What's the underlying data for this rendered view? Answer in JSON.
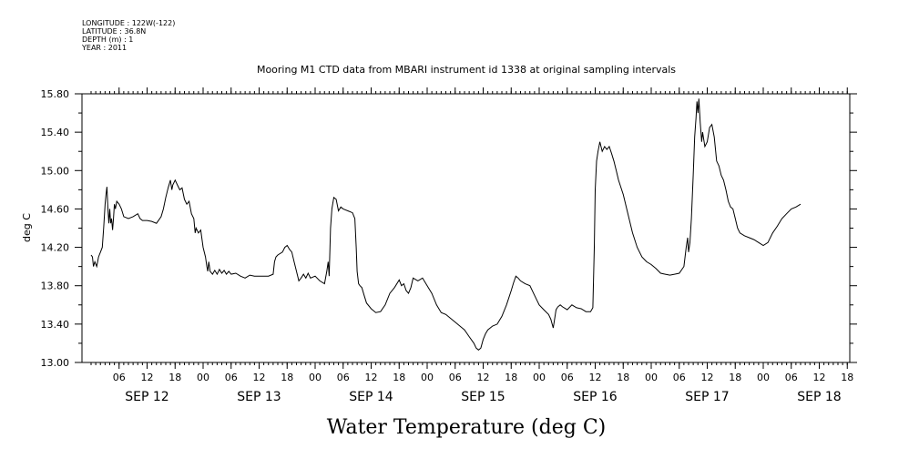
{
  "meta": {
    "longitude": "LONGITUDE : 122W(-122)",
    "latitude": "LATITUDE : 36.8N",
    "depth": "DEPTH (m) : 1",
    "year": "YEAR : 2011"
  },
  "chart_data": {
    "type": "line",
    "title": "Mooring M1 CTD data from MBARI instrument id 1338 at original sampling intervals",
    "xlabel": "Water Temperature (deg C)",
    "ylabel": "deg C",
    "ylim": [
      13.0,
      15.8
    ],
    "yticks": [
      "13.00",
      "13.40",
      "13.80",
      "14.20",
      "14.60",
      "15.00",
      "15.40",
      "15.80"
    ],
    "ytick_values": [
      13.0,
      13.4,
      13.8,
      14.2,
      14.6,
      15.0,
      15.4,
      15.8
    ],
    "xlim": [
      0,
      168
    ],
    "x_unit": "hours from 2011-09-12 00:00",
    "hour_ticks": [
      {
        "x": 6,
        "label": "06"
      },
      {
        "x": 12,
        "label": "12"
      },
      {
        "x": 18,
        "label": "18"
      },
      {
        "x": 24,
        "label": "00"
      },
      {
        "x": 30,
        "label": "06"
      },
      {
        "x": 36,
        "label": "12"
      },
      {
        "x": 42,
        "label": "18"
      },
      {
        "x": 48,
        "label": "00"
      },
      {
        "x": 54,
        "label": "06"
      },
      {
        "x": 60,
        "label": "12"
      },
      {
        "x": 66,
        "label": "18"
      },
      {
        "x": 72,
        "label": "00"
      },
      {
        "x": 78,
        "label": "06"
      },
      {
        "x": 84,
        "label": "12"
      },
      {
        "x": 90,
        "label": "18"
      },
      {
        "x": 96,
        "label": "00"
      },
      {
        "x": 102,
        "label": "06"
      },
      {
        "x": 108,
        "label": "12"
      },
      {
        "x": 114,
        "label": "18"
      },
      {
        "x": 120,
        "label": "00"
      },
      {
        "x": 126,
        "label": "06"
      },
      {
        "x": 132,
        "label": "12"
      },
      {
        "x": 138,
        "label": "18"
      },
      {
        "x": 144,
        "label": "00"
      },
      {
        "x": 150,
        "label": "06"
      },
      {
        "x": 156,
        "label": "12"
      },
      {
        "x": 162,
        "label": "18"
      }
    ],
    "day_labels": [
      {
        "x": 12,
        "label": "SEP 12"
      },
      {
        "x": 36,
        "label": "SEP 13"
      },
      {
        "x": 60,
        "label": "SEP 14"
      },
      {
        "x": 84,
        "label": "SEP 15"
      },
      {
        "x": 108,
        "label": "SEP 16"
      },
      {
        "x": 132,
        "label": "SEP 17"
      },
      {
        "x": 156,
        "label": "SEP 18"
      }
    ],
    "grid": false,
    "series": [
      {
        "points": [
          [
            0.0,
            14.12
          ],
          [
            0.3,
            14.1
          ],
          [
            0.5,
            14.0
          ],
          [
            0.8,
            14.05
          ],
          [
            1.2,
            14.0
          ],
          [
            1.6,
            14.1
          ],
          [
            2.0,
            14.15
          ],
          [
            2.4,
            14.2
          ],
          [
            2.7,
            14.4
          ],
          [
            3.0,
            14.65
          ],
          [
            3.2,
            14.75
          ],
          [
            3.4,
            14.83
          ],
          [
            3.6,
            14.6
          ],
          [
            3.8,
            14.45
          ],
          [
            4.0,
            14.6
          ],
          [
            4.2,
            14.45
          ],
          [
            4.4,
            14.5
          ],
          [
            4.6,
            14.38
          ],
          [
            4.8,
            14.5
          ],
          [
            5.0,
            14.65
          ],
          [
            5.2,
            14.6
          ],
          [
            5.5,
            14.68
          ],
          [
            6.0,
            14.65
          ],
          [
            6.5,
            14.6
          ],
          [
            7.0,
            14.52
          ],
          [
            8.0,
            14.5
          ],
          [
            9.0,
            14.52
          ],
          [
            10.0,
            14.55
          ],
          [
            10.5,
            14.5
          ],
          [
            11.0,
            14.48
          ],
          [
            12.0,
            14.48
          ],
          [
            13.0,
            14.47
          ],
          [
            14.0,
            14.45
          ],
          [
            15.0,
            14.52
          ],
          [
            15.5,
            14.6
          ],
          [
            16.0,
            14.72
          ],
          [
            16.5,
            14.82
          ],
          [
            17.0,
            14.9
          ],
          [
            17.3,
            14.8
          ],
          [
            17.5,
            14.85
          ],
          [
            18.0,
            14.9
          ],
          [
            18.5,
            14.85
          ],
          [
            19.0,
            14.8
          ],
          [
            19.5,
            14.82
          ],
          [
            20.0,
            14.7
          ],
          [
            20.5,
            14.65
          ],
          [
            21.0,
            14.68
          ],
          [
            21.5,
            14.55
          ],
          [
            22.0,
            14.5
          ],
          [
            22.3,
            14.35
          ],
          [
            22.5,
            14.4
          ],
          [
            23.0,
            14.35
          ],
          [
            23.5,
            14.38
          ],
          [
            24.0,
            14.2
          ],
          [
            24.5,
            14.1
          ],
          [
            24.8,
            14.0
          ],
          [
            25.0,
            13.95
          ],
          [
            25.2,
            14.05
          ],
          [
            25.5,
            13.95
          ],
          [
            26.0,
            13.92
          ],
          [
            26.5,
            13.96
          ],
          [
            27.0,
            13.92
          ],
          [
            27.5,
            13.97
          ],
          [
            28.0,
            13.93
          ],
          [
            28.5,
            13.96
          ],
          [
            29.0,
            13.92
          ],
          [
            29.5,
            13.95
          ],
          [
            30.0,
            13.92
          ],
          [
            31.0,
            13.93
          ],
          [
            32.0,
            13.9
          ],
          [
            33.0,
            13.88
          ],
          [
            34.0,
            13.91
          ],
          [
            35.0,
            13.9
          ],
          [
            36.0,
            13.9
          ],
          [
            37.0,
            13.9
          ],
          [
            38.0,
            13.9
          ],
          [
            39.0,
            13.92
          ],
          [
            39.3,
            14.05
          ],
          [
            39.6,
            14.1
          ],
          [
            40.0,
            14.12
          ],
          [
            41.0,
            14.15
          ],
          [
            41.5,
            14.2
          ],
          [
            42.0,
            14.22
          ],
          [
            42.5,
            14.18
          ],
          [
            43.0,
            14.15
          ],
          [
            43.5,
            14.05
          ],
          [
            44.0,
            13.95
          ],
          [
            44.5,
            13.85
          ],
          [
            45.0,
            13.88
          ],
          [
            45.5,
            13.92
          ],
          [
            46.0,
            13.88
          ],
          [
            46.5,
            13.93
          ],
          [
            47.0,
            13.88
          ],
          [
            48.0,
            13.9
          ],
          [
            49.0,
            13.85
          ],
          [
            50.0,
            13.82
          ],
          [
            50.5,
            13.95
          ],
          [
            50.8,
            14.05
          ],
          [
            51.0,
            13.9
          ],
          [
            51.3,
            14.4
          ],
          [
            51.6,
            14.6
          ],
          [
            52.0,
            14.72
          ],
          [
            52.5,
            14.7
          ],
          [
            53.0,
            14.58
          ],
          [
            53.5,
            14.62
          ],
          [
            54.0,
            14.6
          ],
          [
            55.0,
            14.58
          ],
          [
            56.0,
            14.56
          ],
          [
            56.5,
            14.5
          ],
          [
            56.8,
            14.2
          ],
          [
            57.0,
            13.95
          ],
          [
            57.3,
            13.82
          ],
          [
            57.6,
            13.8
          ],
          [
            58.0,
            13.78
          ],
          [
            58.5,
            13.7
          ],
          [
            59.0,
            13.62
          ],
          [
            60.0,
            13.56
          ],
          [
            61.0,
            13.52
          ],
          [
            62.0,
            13.53
          ],
          [
            63.0,
            13.6
          ],
          [
            64.0,
            13.72
          ],
          [
            65.0,
            13.78
          ],
          [
            66.0,
            13.86
          ],
          [
            66.5,
            13.8
          ],
          [
            67.0,
            13.82
          ],
          [
            67.5,
            13.75
          ],
          [
            68.0,
            13.72
          ],
          [
            68.5,
            13.78
          ],
          [
            69.0,
            13.88
          ],
          [
            70.0,
            13.85
          ],
          [
            71.0,
            13.88
          ],
          [
            72.0,
            13.8
          ],
          [
            73.0,
            13.72
          ],
          [
            74.0,
            13.6
          ],
          [
            75.0,
            13.52
          ],
          [
            76.0,
            13.5
          ],
          [
            77.0,
            13.46
          ],
          [
            78.0,
            13.42
          ],
          [
            79.0,
            13.38
          ],
          [
            80.0,
            13.34
          ],
          [
            81.0,
            13.27
          ],
          [
            82.0,
            13.2
          ],
          [
            82.5,
            13.15
          ],
          [
            83.0,
            13.13
          ],
          [
            83.5,
            13.15
          ],
          [
            84.0,
            13.24
          ],
          [
            84.5,
            13.3
          ],
          [
            85.0,
            13.34
          ],
          [
            86.0,
            13.38
          ],
          [
            87.0,
            13.4
          ],
          [
            88.0,
            13.48
          ],
          [
            89.0,
            13.6
          ],
          [
            90.0,
            13.75
          ],
          [
            90.5,
            13.83
          ],
          [
            91.0,
            13.9
          ],
          [
            91.5,
            13.88
          ],
          [
            92.0,
            13.85
          ],
          [
            93.0,
            13.82
          ],
          [
            94.0,
            13.8
          ],
          [
            95.0,
            13.7
          ],
          [
            96.0,
            13.6
          ],
          [
            97.0,
            13.55
          ],
          [
            98.0,
            13.5
          ],
          [
            98.5,
            13.45
          ],
          [
            99.0,
            13.36
          ],
          [
            99.3,
            13.45
          ],
          [
            99.6,
            13.55
          ],
          [
            100.0,
            13.58
          ],
          [
            100.5,
            13.6
          ],
          [
            101.0,
            13.58
          ],
          [
            102.0,
            13.55
          ],
          [
            103.0,
            13.6
          ],
          [
            104.0,
            13.57
          ],
          [
            105.0,
            13.56
          ],
          [
            106.0,
            13.53
          ],
          [
            107.0,
            13.53
          ],
          [
            107.5,
            13.57
          ],
          [
            107.8,
            14.2
          ],
          [
            108.0,
            14.8
          ],
          [
            108.3,
            15.1
          ],
          [
            108.6,
            15.2
          ],
          [
            109.0,
            15.3
          ],
          [
            109.5,
            15.2
          ],
          [
            110.0,
            15.25
          ],
          [
            110.5,
            15.22
          ],
          [
            111.0,
            15.25
          ],
          [
            111.5,
            15.18
          ],
          [
            112.0,
            15.1
          ],
          [
            112.5,
            15.0
          ],
          [
            113.0,
            14.9
          ],
          [
            114.0,
            14.75
          ],
          [
            115.0,
            14.55
          ],
          [
            116.0,
            14.35
          ],
          [
            117.0,
            14.2
          ],
          [
            118.0,
            14.1
          ],
          [
            119.0,
            14.05
          ],
          [
            120.0,
            14.02
          ],
          [
            121.0,
            13.98
          ],
          [
            122.0,
            13.93
          ],
          [
            123.0,
            13.92
          ],
          [
            124.0,
            13.91
          ],
          [
            125.0,
            13.92
          ],
          [
            126.0,
            13.93
          ],
          [
            127.0,
            14.0
          ],
          [
            127.5,
            14.2
          ],
          [
            127.8,
            14.3
          ],
          [
            128.0,
            14.15
          ],
          [
            128.3,
            14.25
          ],
          [
            128.6,
            14.5
          ],
          [
            129.0,
            14.95
          ],
          [
            129.3,
            15.35
          ],
          [
            129.6,
            15.55
          ],
          [
            129.8,
            15.72
          ],
          [
            130.0,
            15.6
          ],
          [
            130.2,
            15.75
          ],
          [
            130.5,
            15.5
          ],
          [
            130.8,
            15.3
          ],
          [
            131.0,
            15.4
          ],
          [
            131.5,
            15.25
          ],
          [
            132.0,
            15.3
          ],
          [
            132.5,
            15.45
          ],
          [
            133.0,
            15.48
          ],
          [
            133.5,
            15.35
          ],
          [
            134.0,
            15.1
          ],
          [
            134.5,
            15.05
          ],
          [
            135.0,
            14.95
          ],
          [
            135.5,
            14.9
          ],
          [
            136.0,
            14.8
          ],
          [
            136.5,
            14.68
          ],
          [
            137.0,
            14.62
          ],
          [
            137.5,
            14.6
          ],
          [
            138.0,
            14.5
          ],
          [
            138.5,
            14.4
          ],
          [
            139.0,
            14.35
          ],
          [
            140.0,
            14.32
          ],
          [
            141.0,
            14.3
          ],
          [
            142.0,
            14.28
          ],
          [
            143.0,
            14.25
          ],
          [
            144.0,
            14.22
          ],
          [
            145.0,
            14.25
          ],
          [
            146.0,
            14.35
          ],
          [
            147.0,
            14.42
          ],
          [
            148.0,
            14.5
          ],
          [
            149.0,
            14.55
          ],
          [
            150.0,
            14.6
          ],
          [
            151.0,
            14.62
          ],
          [
            152.0,
            14.65
          ]
        ]
      }
    ]
  }
}
